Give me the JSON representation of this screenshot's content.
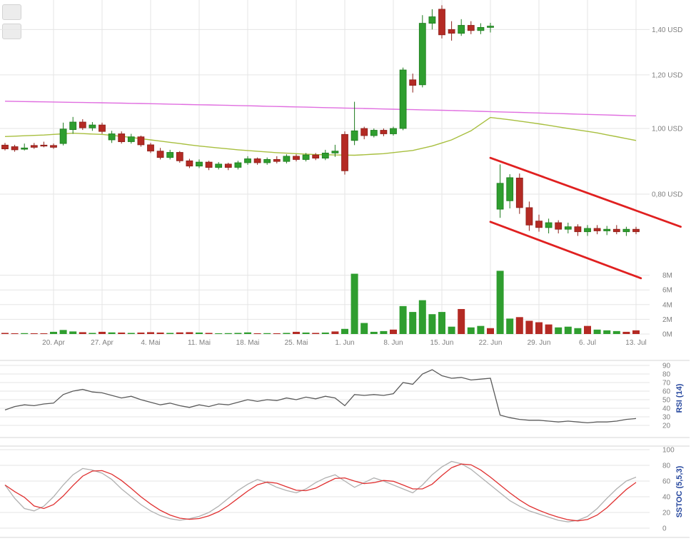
{
  "indicators": {
    "rsi_title": "RSI (14)",
    "sstoc_title": "SSTOC (5,5,3)"
  },
  "colors": {
    "up": "#2f9e2f",
    "up_border": "#1d7a1d",
    "down": "#b42a24",
    "down_border": "#8c1f1a",
    "ma_olive": "#a8bf3f",
    "ma_magenta": "#e06ee0",
    "trendline": "#e02020",
    "rsi_line": "#5a5a5a",
    "stoch_k": "#b0b0b0",
    "stoch_d": "#e03030",
    "grid": "#e5e5e5",
    "panel_border": "#d6d6d6",
    "axis_text": "#7f7f7f",
    "indicator_title": "#26479e"
  },
  "chart_data": [
    {
      "type": "candlestick",
      "y_axis": {
        "unit": "USD",
        "scale": "log",
        "ticks": [
          1.4,
          1.2,
          1.0,
          0.8
        ],
        "tick_labels": [
          "1,40 USD",
          "1,20 USD",
          "1,00 USD",
          "0,80 USD"
        ]
      },
      "volume_axis": {
        "unit": "M",
        "ticks": [
          8,
          6,
          4,
          2,
          0
        ],
        "tick_labels": [
          "8M",
          "6M",
          "4M",
          "2M",
          "0M"
        ]
      },
      "x_ticks": [
        {
          "index": 5,
          "label": "20. Apr"
        },
        {
          "index": 10,
          "label": "27. Apr"
        },
        {
          "index": 15,
          "label": "4. Mai"
        },
        {
          "index": 20,
          "label": "11. Mai"
        },
        {
          "index": 25,
          "label": "18. Mai"
        },
        {
          "index": 30,
          "label": "25. Mai"
        },
        {
          "index": 35,
          "label": "1. Jun"
        },
        {
          "index": 40,
          "label": "8. Jun"
        },
        {
          "index": 45,
          "label": "15. Jun"
        },
        {
          "index": 50,
          "label": "22. Jun"
        },
        {
          "index": 55,
          "label": "29. Jun"
        },
        {
          "index": 60,
          "label": "6. Jul"
        },
        {
          "index": 65,
          "label": "13. Jul"
        }
      ],
      "ohlc": [
        [
          0.945,
          0.952,
          0.928,
          0.933
        ],
        [
          0.94,
          0.946,
          0.924,
          0.93
        ],
        [
          0.932,
          0.95,
          0.928,
          0.936
        ],
        [
          0.944,
          0.952,
          0.933,
          0.938
        ],
        [
          0.945,
          0.956,
          0.938,
          0.944
        ],
        [
          0.944,
          0.95,
          0.933,
          0.938
        ],
        [
          0.95,
          1.02,
          0.944,
          0.998
        ],
        [
          0.996,
          1.04,
          0.982,
          1.022
        ],
        [
          1.022,
          1.032,
          0.995,
          1.002
        ],
        [
          1.002,
          1.022,
          0.992,
          1.012
        ],
        [
          1.012,
          1.02,
          0.982,
          0.99
        ],
        [
          0.962,
          0.992,
          0.952,
          0.982
        ],
        [
          0.982,
          0.99,
          0.95,
          0.956
        ],
        [
          0.956,
          0.982,
          0.95,
          0.972
        ],
        [
          0.972,
          0.976,
          0.94,
          0.946
        ],
        [
          0.946,
          0.952,
          0.92,
          0.926
        ],
        [
          0.926,
          0.936,
          0.9,
          0.906
        ],
        [
          0.906,
          0.93,
          0.9,
          0.922
        ],
        [
          0.922,
          0.926,
          0.89,
          0.896
        ],
        [
          0.896,
          0.902,
          0.874,
          0.88
        ],
        [
          0.88,
          0.9,
          0.874,
          0.892
        ],
        [
          0.892,
          0.896,
          0.868,
          0.876
        ],
        [
          0.876,
          0.892,
          0.87,
          0.886
        ],
        [
          0.886,
          0.89,
          0.868,
          0.876
        ],
        [
          0.876,
          0.896,
          0.87,
          0.89
        ],
        [
          0.89,
          0.91,
          0.884,
          0.902
        ],
        [
          0.902,
          0.906,
          0.884,
          0.89
        ],
        [
          0.89,
          0.906,
          0.884,
          0.9
        ],
        [
          0.9,
          0.91,
          0.888,
          0.894
        ],
        [
          0.894,
          0.916,
          0.888,
          0.91
        ],
        [
          0.91,
          0.916,
          0.894,
          0.9
        ],
        [
          0.9,
          0.92,
          0.894,
          0.914
        ],
        [
          0.914,
          0.92,
          0.898,
          0.904
        ],
        [
          0.904,
          0.93,
          0.898,
          0.92
        ],
        [
          0.92,
          0.946,
          0.908,
          0.926
        ],
        [
          0.98,
          0.99,
          0.855,
          0.866
        ],
        [
          0.96,
          1.095,
          0.945,
          0.992
        ],
        [
          1.0,
          1.006,
          0.964,
          0.976
        ],
        [
          0.976,
          1.0,
          0.97,
          0.994
        ],
        [
          0.994,
          1.0,
          0.974,
          0.982
        ],
        [
          0.982,
          1.006,
          0.976,
          1.0
        ],
        [
          1.0,
          1.23,
          0.994,
          1.22
        ],
        [
          1.18,
          1.205,
          1.13,
          1.158
        ],
        [
          1.16,
          1.47,
          1.15,
          1.43
        ],
        [
          1.43,
          1.5,
          1.4,
          1.462
        ],
        [
          1.5,
          1.52,
          1.358,
          1.375
        ],
        [
          1.4,
          1.44,
          1.348,
          1.382
        ],
        [
          1.382,
          1.45,
          1.37,
          1.42
        ],
        [
          1.42,
          1.44,
          1.378,
          1.395
        ],
        [
          1.395,
          1.43,
          1.378,
          1.41
        ],
        [
          1.41,
          1.432,
          1.386,
          1.416
        ],
        [
          0.76,
          0.885,
          0.738,
          0.83
        ],
        [
          0.782,
          0.856,
          0.762,
          0.846
        ],
        [
          0.845,
          0.858,
          0.748,
          0.764
        ],
        [
          0.764,
          0.78,
          0.706,
          0.72
        ],
        [
          0.73,
          0.746,
          0.704,
          0.714
        ],
        [
          0.714,
          0.736,
          0.7,
          0.726
        ],
        [
          0.726,
          0.732,
          0.7,
          0.71
        ],
        [
          0.71,
          0.726,
          0.7,
          0.716
        ],
        [
          0.716,
          0.722,
          0.694,
          0.704
        ],
        [
          0.704,
          0.72,
          0.694,
          0.712
        ],
        [
          0.712,
          0.72,
          0.698,
          0.706
        ],
        [
          0.706,
          0.718,
          0.696,
          0.71
        ],
        [
          0.71,
          0.72,
          0.698,
          0.704
        ],
        [
          0.704,
          0.716,
          0.694,
          0.71
        ],
        [
          0.71,
          0.716,
          0.698,
          0.704
        ]
      ],
      "volume": [
        0.15,
        0.1,
        0.12,
        0.1,
        0.08,
        0.3,
        0.55,
        0.35,
        0.25,
        0.15,
        0.3,
        0.22,
        0.2,
        0.15,
        0.2,
        0.25,
        0.2,
        0.15,
        0.22,
        0.25,
        0.2,
        0.15,
        0.1,
        0.12,
        0.15,
        0.22,
        0.1,
        0.12,
        0.1,
        0.15,
        0.3,
        0.2,
        0.15,
        0.2,
        0.35,
        0.7,
        8.2,
        1.5,
        0.3,
        0.4,
        0.6,
        3.8,
        3.0,
        4.6,
        2.7,
        3.0,
        1.0,
        3.4,
        0.9,
        1.1,
        0.8,
        8.6,
        2.1,
        2.3,
        1.8,
        1.6,
        1.3,
        0.9,
        1.0,
        0.8,
        1.1,
        0.6,
        0.5,
        0.4,
        0.3,
        0.5
      ],
      "volume_direction": "ddudduuududududddudduduuuudududududuuuuuduuuuuuduuduudddduuuduuudddduu",
      "moving_averages": [
        {
          "name": "ma-olive-line",
          "color_key": "ma_olive",
          "points": [
            [
              0,
              0.973
            ],
            [
              4,
              0.978
            ],
            [
              7,
              0.984
            ],
            [
              10,
              0.98
            ],
            [
              13,
              0.97
            ],
            [
              16,
              0.958
            ],
            [
              20,
              0.942
            ],
            [
              24,
              0.93
            ],
            [
              28,
              0.921
            ],
            [
              32,
              0.915
            ],
            [
              36,
              0.913
            ],
            [
              39,
              0.918
            ],
            [
              42,
              0.928
            ],
            [
              44,
              0.942
            ],
            [
              46,
              0.962
            ],
            [
              48,
              0.992
            ],
            [
              50,
              1.038
            ],
            [
              52,
              1.03
            ],
            [
              55,
              1.016
            ],
            [
              58,
              1.0
            ],
            [
              61,
              0.985
            ],
            [
              65,
              0.96
            ]
          ]
        },
        {
          "name": "ma-magenta-line",
          "color_key": "ma_magenta",
          "points": [
            [
              0,
              1.097
            ],
            [
              12,
              1.09
            ],
            [
              24,
              1.081
            ],
            [
              36,
              1.071
            ],
            [
              46,
              1.063
            ],
            [
              52,
              1.057
            ],
            [
              58,
              1.051
            ],
            [
              65,
              1.044
            ]
          ]
        }
      ],
      "trendlines": [
        {
          "name": "trend-channel-upper",
          "from": {
            "index": 50.0,
            "price": 0.905
          },
          "to": {
            "index": 69.6,
            "price": 0.716
          }
        },
        {
          "name": "trend-channel-lower",
          "from": {
            "index": 50.0,
            "price": 0.728
          },
          "to": {
            "index": 65.5,
            "price": 0.601
          }
        }
      ]
    },
    {
      "type": "line",
      "name": "RSI (14)",
      "y_ticks": [
        90,
        80,
        70,
        60,
        50,
        40,
        30,
        20
      ],
      "y_range": [
        7,
        96
      ],
      "series": [
        {
          "name": "rsi-line",
          "color_key": "rsi_line",
          "values": [
            38,
            42,
            44,
            43,
            45,
            46,
            56,
            60,
            62,
            59,
            58,
            55,
            52,
            54,
            50,
            47,
            44,
            46,
            43,
            41,
            44,
            42,
            45,
            44,
            47,
            50,
            48,
            50,
            49,
            52,
            50,
            53,
            51,
            54,
            52,
            43,
            56,
            55,
            56,
            55,
            57,
            70,
            68,
            80,
            85,
            78,
            75,
            76,
            73,
            74,
            75,
            32,
            29,
            27,
            26,
            26,
            25,
            24,
            25,
            24,
            23,
            24,
            24,
            25,
            27,
            28
          ]
        }
      ]
    },
    {
      "type": "line",
      "name": "SSTOC (5,5,3)",
      "y_ticks": [
        100,
        80,
        60,
        40,
        20,
        0
      ],
      "y_range": [
        0,
        100
      ],
      "series": [
        {
          "name": "stoch-k-line",
          "color_key": "stoch_k",
          "values": [
            55,
            38,
            25,
            22,
            28,
            40,
            55,
            68,
            76,
            74,
            70,
            62,
            50,
            40,
            30,
            22,
            16,
            12,
            10,
            12,
            15,
            20,
            28,
            38,
            48,
            56,
            62,
            58,
            52,
            48,
            45,
            50,
            58,
            64,
            68,
            60,
            52,
            58,
            64,
            60,
            55,
            50,
            45,
            55,
            68,
            78,
            85,
            82,
            75,
            65,
            55,
            45,
            35,
            28,
            22,
            18,
            14,
            10,
            8,
            10,
            15,
            25,
            38,
            50,
            60,
            65
          ]
        },
        {
          "name": "stoch-d-line",
          "color_key": "stoch_d",
          "values": [
            55,
            46.5,
            39.3,
            28.3,
            25,
            30,
            41,
            54.3,
            66.3,
            72.7,
            73.3,
            68.7,
            60.7,
            50.7,
            40,
            30.7,
            22.7,
            16.7,
            12.7,
            11.3,
            12.3,
            15.7,
            21,
            28.7,
            38,
            47.3,
            55.3,
            58.7,
            57.3,
            52.7,
            48.3,
            47.7,
            51,
            57.3,
            63.3,
            64,
            60,
            56.7,
            58,
            60.7,
            59.7,
            55,
            50,
            50,
            56,
            67,
            77,
            81.7,
            80.7,
            74,
            65,
            55,
            45,
            36,
            28.3,
            22.7,
            18,
            14,
            10.7,
            9.3,
            11,
            16.7,
            26,
            37.7,
            49.3,
            58.3
          ]
        }
      ]
    }
  ]
}
